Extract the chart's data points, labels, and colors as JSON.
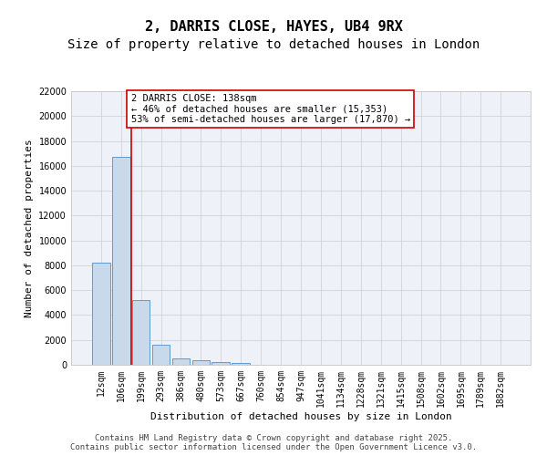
{
  "title1": "2, DARRIS CLOSE, HAYES, UB4 9RX",
  "title2": "Size of property relative to detached houses in London",
  "xlabel": "Distribution of detached houses by size in London",
  "ylabel": "Number of detached properties",
  "categories": [
    "12sqm",
    "106sqm",
    "199sqm",
    "293sqm",
    "386sqm",
    "480sqm",
    "573sqm",
    "667sqm",
    "760sqm",
    "854sqm",
    "947sqm",
    "1041sqm",
    "1134sqm",
    "1228sqm",
    "1321sqm",
    "1415sqm",
    "1508sqm",
    "1602sqm",
    "1695sqm",
    "1789sqm",
    "1882sqm"
  ],
  "values": [
    8200,
    16700,
    5200,
    1600,
    550,
    380,
    200,
    120,
    0,
    0,
    0,
    0,
    0,
    0,
    0,
    0,
    0,
    0,
    0,
    0,
    0
  ],
  "bar_color": "#c8d9eb",
  "bar_edge_color": "#5b9bd5",
  "annotation_text": "2 DARRIS CLOSE: 138sqm\n← 46% of detached houses are smaller (15,353)\n53% of semi-detached houses are larger (17,870) →",
  "annotation_box_color": "#ffffff",
  "annotation_box_edge_color": "#cc0000",
  "vline_color": "#cc0000",
  "vline_x": 1.5,
  "ylim": [
    0,
    22000
  ],
  "yticks": [
    0,
    2000,
    4000,
    6000,
    8000,
    10000,
    12000,
    14000,
    16000,
    18000,
    20000,
    22000
  ],
  "grid_color": "#cccccc",
  "ax_facecolor": "#eef2f8",
  "background_color": "#ffffff",
  "footer": "Contains HM Land Registry data © Crown copyright and database right 2025.\nContains public sector information licensed under the Open Government Licence v3.0.",
  "title_fontsize": 11,
  "subtitle_fontsize": 10,
  "axis_label_fontsize": 8,
  "tick_fontsize": 7,
  "annotation_fontsize": 7.5,
  "footer_fontsize": 6.5
}
